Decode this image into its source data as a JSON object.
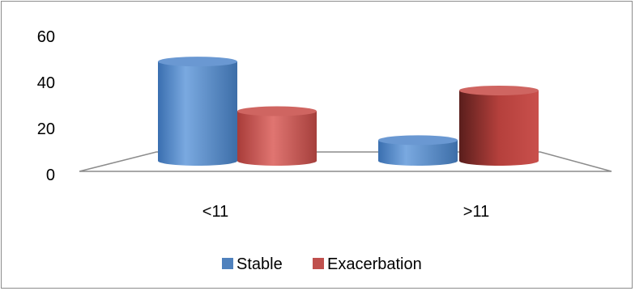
{
  "chart_data": {
    "type": "bar",
    "categories": [
      "<11",
      ">11"
    ],
    "series": [
      {
        "name": "Stable",
        "values": [
          48,
          10
        ],
        "color": "#4f81bd"
      },
      {
        "name": "Exacerbation",
        "values": [
          24,
          34
        ],
        "color": "#c0504d"
      }
    ],
    "yticks": [
      "0",
      "20",
      "40",
      "60"
    ],
    "ylim": [
      0,
      60
    ],
    "legend": "bottom",
    "grid": false,
    "style": "3d-cylinder"
  }
}
